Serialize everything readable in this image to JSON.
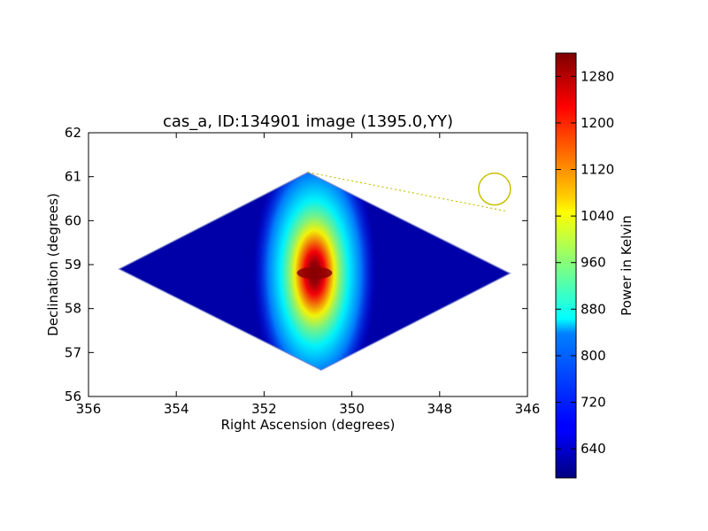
{
  "chart_data": {
    "type": "heatmap",
    "title": "cas_a, ID:134901 image (1395.0,YY)",
    "xlabel": "Right Ascension (degrees)",
    "ylabel": "Declination (degrees)",
    "xlim": [
      356,
      346
    ],
    "ylim": [
      56,
      62
    ],
    "x_ticks": [
      356,
      354,
      352,
      350,
      348,
      346
    ],
    "y_ticks": [
      56,
      57,
      58,
      59,
      60,
      61,
      62
    ],
    "colorbar": {
      "label": "Power in Kelvin",
      "range": [
        590,
        1320
      ],
      "ticks": [
        640,
        720,
        800,
        880,
        960,
        1040,
        1120,
        1200,
        1280
      ],
      "colormap": "jet"
    },
    "footprint": {
      "shape": "diamond",
      "vertices": [
        [
          351.0,
          61.1
        ],
        [
          355.3,
          58.9
        ],
        [
          350.7,
          56.6
        ],
        [
          346.4,
          58.8
        ]
      ],
      "background_power": 620
    },
    "sources": [
      {
        "ra": 350.85,
        "dec": 58.81,
        "peak_power": 1320
      }
    ],
    "beam_marker": {
      "ra": 346.75,
      "dec": 60.72,
      "line_start": [
        351.0,
        61.1
      ],
      "line_end": [
        346.5,
        60.22
      ],
      "color": "#c8c000"
    }
  }
}
